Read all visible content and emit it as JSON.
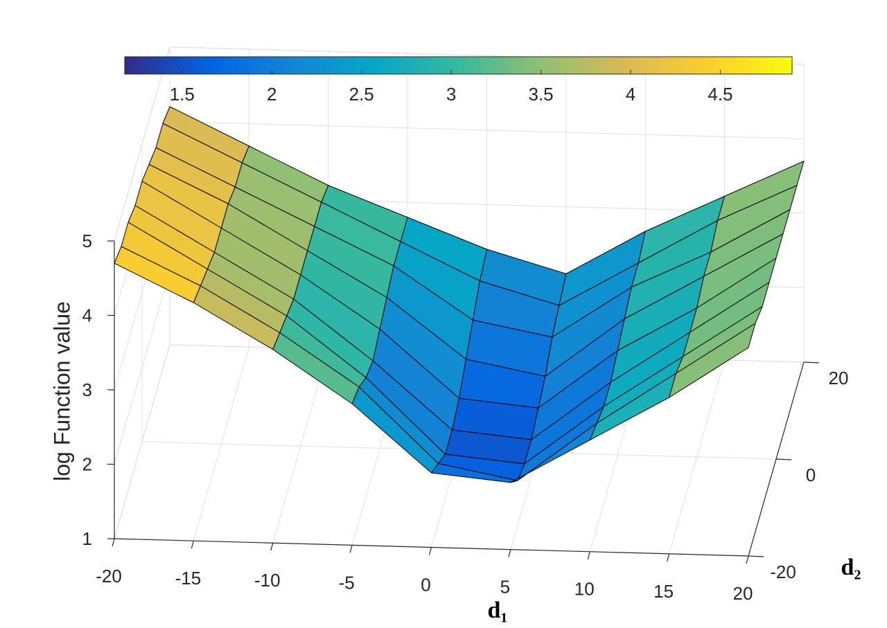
{
  "chart_data": {
    "type": "surface",
    "xlabel": "d₁",
    "ylabel": "d₂",
    "zlabel": "log Function value",
    "x": [
      -20,
      -15,
      -10,
      -5,
      0,
      5,
      10,
      15,
      20
    ],
    "y": [
      -20,
      -15,
      -10,
      -5,
      0,
      5,
      10,
      15,
      20
    ],
    "z": [
      [
        4.7,
        4.2,
        3.6,
        2.9,
        2.0,
        1.9,
        2.5,
        3.1,
        3.8
      ],
      [
        4.6,
        4.1,
        3.5,
        2.8,
        1.8,
        1.6,
        2.4,
        3.1,
        3.8
      ],
      [
        4.6,
        4.0,
        3.4,
        2.6,
        1.6,
        1.5,
        2.3,
        3.0,
        3.7
      ],
      [
        4.5,
        3.9,
        3.3,
        2.5,
        1.6,
        1.5,
        2.3,
        3.0,
        3.7
      ],
      [
        4.5,
        3.9,
        3.3,
        2.6,
        1.7,
        1.6,
        2.4,
        3.0,
        3.7
      ],
      [
        4.4,
        3.9,
        3.3,
        2.7,
        1.9,
        1.7,
        2.5,
        3.1,
        3.7
      ],
      [
        4.3,
        3.8,
        3.3,
        2.8,
        2.1,
        1.9,
        2.6,
        3.1,
        3.7
      ],
      [
        4.3,
        3.8,
        3.3,
        2.8,
        2.3,
        2.0,
        2.6,
        3.2,
        3.7
      ],
      [
        4.2,
        3.7,
        3.2,
        2.8,
        2.4,
        2.1,
        2.7,
        3.2,
        3.7
      ]
    ],
    "xlim": [
      -20,
      20
    ],
    "ylim": [
      -20,
      20
    ],
    "zlim": [
      1,
      5
    ],
    "xticks": [
      -20,
      -15,
      -10,
      -5,
      0,
      5,
      10,
      15,
      20
    ],
    "yticks": [
      -20,
      0,
      20
    ],
    "zticks": [
      1,
      2,
      3,
      4,
      5
    ],
    "clim": [
      1.18,
      4.9
    ],
    "cticks": [
      1.5,
      2,
      2.5,
      3,
      3.5,
      4,
      4.5
    ],
    "colormap": [
      "#352a87",
      "#0363e1",
      "#1485d4",
      "#06a7c6",
      "#38b99e",
      "#92bf73",
      "#d9ba56",
      "#fcce2e",
      "#f9fb0e"
    ],
    "edge_color": "#000000",
    "grid": true
  }
}
